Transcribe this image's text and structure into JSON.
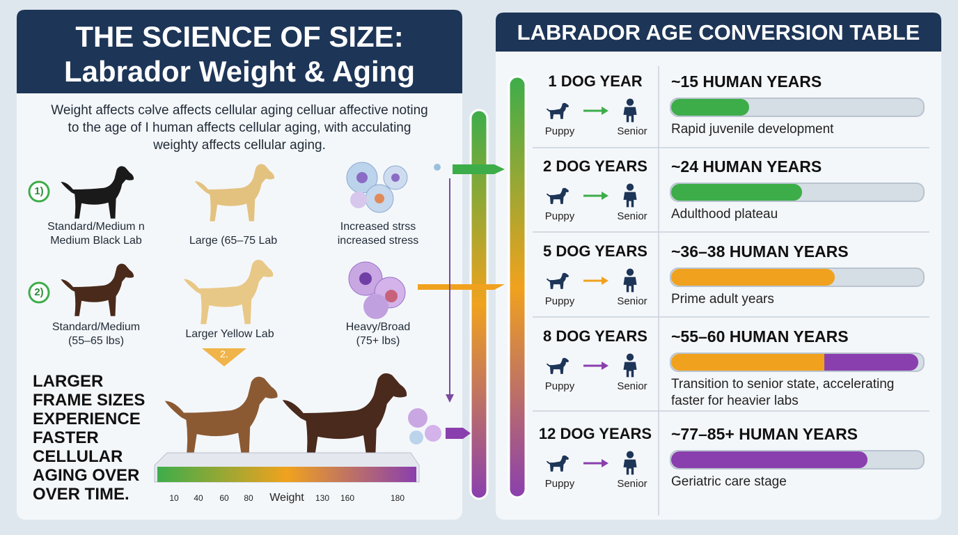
{
  "left": {
    "title_line1": "THE SCIENCE OF SIZE:",
    "title_line2": "Labrador Weight & Aging",
    "intro": [
      "Weight affects cəlve affects cellular aging celluar affective noting",
      "to the  age of I human affects  cellular aging, with acculating",
      "weighty affects cellular aging."
    ],
    "markers": [
      "1)",
      "2)",
      "2."
    ],
    "dogs": [
      [
        "Standard/Medium n",
        "Medium Black Lab"
      ],
      [
        "Large (65–75 Lab"
      ],
      [
        "Standard/Medium",
        "(55–65 lbs)"
      ],
      [
        "Larger Yellow Lab"
      ]
    ],
    "cells": [
      [
        "Increased strss",
        "increased stress"
      ],
      [
        "Heavy/Broad",
        "(75+ lbs)"
      ]
    ],
    "conclusion": [
      "LARGER",
      "FRAME SIZES",
      "EXPERIENCE",
      "FASTER",
      "CELLULAR",
      "AGING OVER",
      "OVER TIME."
    ],
    "scale": {
      "ticks": [
        "10",
        "40",
        "60",
        "80",
        "130",
        "160",
        "180"
      ],
      "label": "Weight"
    }
  },
  "right": {
    "title": "LABRADOR AGE CONVERSION TABLE",
    "rows": [
      {
        "dog": "1 DOG YEAR",
        "human": "~15 HUMAN YEARS",
        "note": [
          "Rapid juvenile development"
        ],
        "puppy": "Puppy",
        "senior": "Senior"
      },
      {
        "dog": "2 DOG YEARS",
        "human": "~24 HUMAN YEARS",
        "note": [
          "Adulthood plateau"
        ],
        "puppy": "Puppy",
        "senior": "Senior"
      },
      {
        "dog": "5 DOG YEARS",
        "human": "~36–38 HUMAN YEARS",
        "note": [
          "Prime adult years"
        ],
        "puppy": "Puppy",
        "senior": "Senior"
      },
      {
        "dog": "8 DOG YEARS",
        "human": "~55–60 HUMAN YEARS",
        "note": [
          "Transition to senior state, accelerating",
          "faster for heavier labs"
        ],
        "puppy": "Puppy",
        "senior": "Senior"
      },
      {
        "dog": "12 DOG YEARS",
        "human": "~77–85+ HUMAN YEARS",
        "note": [
          "Geriatric care stage"
        ],
        "puppy": "Puppy",
        "senior": "Senior"
      }
    ]
  }
}
